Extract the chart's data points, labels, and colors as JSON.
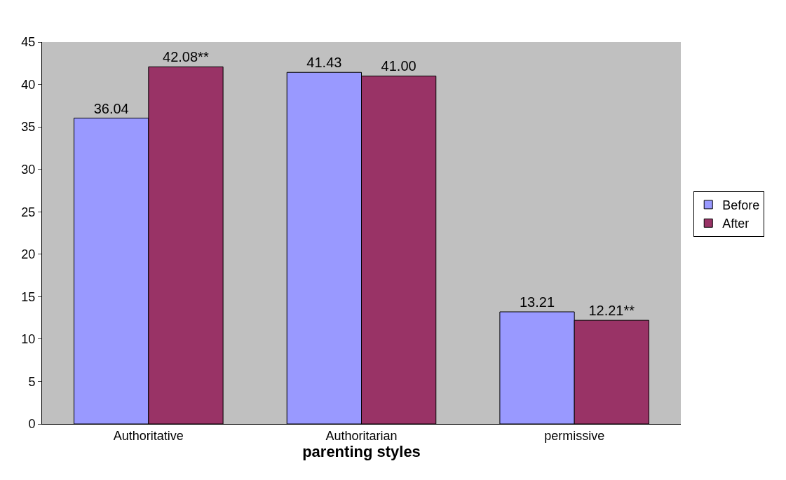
{
  "chart_data": {
    "type": "bar",
    "xlabel": "parenting styles",
    "categories": [
      "Authoritative",
      "Authoritarian",
      "permissive"
    ],
    "series": [
      {
        "name": "Before",
        "color": "#9999ff",
        "values": [
          36.04,
          41.43,
          13.21
        ],
        "value_labels": [
          "36.04",
          "41.43",
          "13.21"
        ]
      },
      {
        "name": "After",
        "color": "#993366",
        "values": [
          42.08,
          41.0,
          12.21
        ],
        "value_labels": [
          "42.08**",
          "41.00",
          "12.21**"
        ]
      }
    ],
    "ylim": [
      0,
      45
    ],
    "yticks": [
      0,
      5,
      10,
      15,
      20,
      25,
      30,
      35,
      40,
      45
    ],
    "grid": false,
    "legend": "right"
  }
}
